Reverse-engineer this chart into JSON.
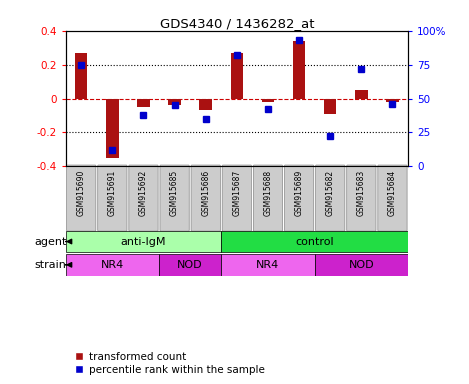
{
  "title": "GDS4340 / 1436282_at",
  "samples": [
    "GSM915690",
    "GSM915691",
    "GSM915692",
    "GSM915685",
    "GSM915686",
    "GSM915687",
    "GSM915688",
    "GSM915689",
    "GSM915682",
    "GSM915683",
    "GSM915684"
  ],
  "transformed_count": [
    0.27,
    -0.35,
    -0.05,
    -0.04,
    -0.07,
    0.27,
    -0.02,
    0.34,
    -0.09,
    0.05,
    -0.02
  ],
  "percentile_rank": [
    75,
    12,
    38,
    45,
    35,
    82,
    42,
    93,
    22,
    72,
    46
  ],
  "agent_groups": [
    {
      "label": "anti-IgM",
      "start": 0,
      "end": 5,
      "color": "#aaffaa"
    },
    {
      "label": "control",
      "start": 5,
      "end": 11,
      "color": "#22dd44"
    }
  ],
  "strain_groups": [
    {
      "label": "NR4",
      "start": 0,
      "end": 3,
      "color": "#ee66ee"
    },
    {
      "label": "NOD",
      "start": 3,
      "end": 5,
      "color": "#cc22cc"
    },
    {
      "label": "NR4",
      "start": 5,
      "end": 8,
      "color": "#ee66ee"
    },
    {
      "label": "NOD",
      "start": 8,
      "end": 11,
      "color": "#cc22cc"
    }
  ],
  "ylim_left": [
    -0.4,
    0.4
  ],
  "ylim_right": [
    0,
    100
  ],
  "yticks_left": [
    -0.4,
    -0.2,
    0.0,
    0.2,
    0.4
  ],
  "ytick_labels_left": [
    "-0.4",
    "-0.2",
    "0",
    "0.2",
    "0.4"
  ],
  "yticks_right": [
    0,
    25,
    50,
    75,
    100
  ],
  "ytick_labels_right": [
    "0",
    "25",
    "50",
    "75",
    "100%"
  ],
  "bar_color": "#aa1111",
  "dot_color": "#0000cc",
  "zero_line_color": "#cc0000",
  "dot_line_color": "#0000aa",
  "legend_red_label": "transformed count",
  "legend_blue_label": "percentile rank within the sample",
  "agent_label": "agent",
  "strain_label": "strain",
  "sample_box_color": "#cccccc",
  "sample_box_edge": "#888888"
}
